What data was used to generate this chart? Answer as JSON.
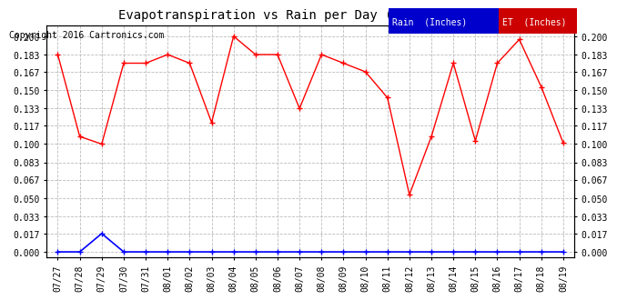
{
  "title": "Evapotranspiration vs Rain per Day (Inches) 20160820",
  "copyright": "Copyright 2016 Cartronics.com",
  "x_labels": [
    "07/27",
    "07/28",
    "07/29",
    "07/30",
    "07/31",
    "08/01",
    "08/02",
    "08/03",
    "08/04",
    "08/05",
    "08/06",
    "08/07",
    "08/08",
    "08/09",
    "08/10",
    "08/11",
    "08/12",
    "08/13",
    "08/14",
    "08/15",
    "08/16",
    "08/17",
    "08/18",
    "08/19"
  ],
  "et_values": [
    0.183,
    0.107,
    0.1,
    0.175,
    0.175,
    0.183,
    0.175,
    0.12,
    0.2,
    0.183,
    0.183,
    0.133,
    0.183,
    0.175,
    0.167,
    0.143,
    0.053,
    0.107,
    0.175,
    0.103,
    0.175,
    0.197,
    0.153,
    0.101
  ],
  "rain_values": [
    0.0,
    0.0,
    0.017,
    0.0,
    0.0,
    0.0,
    0.0,
    0.0,
    0.0,
    0.0,
    0.0,
    0.0,
    0.0,
    0.0,
    0.0,
    0.0,
    0.0,
    0.0,
    0.0,
    0.0,
    0.0,
    0.0,
    0.0,
    0.0
  ],
  "et_color": "red",
  "rain_color": "blue",
  "background_color": "white",
  "grid_color": "#bbbbbb",
  "y_ticks": [
    0.0,
    0.017,
    0.033,
    0.05,
    0.067,
    0.083,
    0.1,
    0.117,
    0.133,
    0.15,
    0.167,
    0.183,
    0.2
  ],
  "legend_rain_bg": "#0000cc",
  "legend_et_bg": "#cc0000",
  "legend_rain_text": "Rain  (Inches)",
  "legend_et_text": "ET  (Inches)",
  "title_fontsize": 10,
  "copyright_fontsize": 7,
  "tick_fontsize": 7
}
